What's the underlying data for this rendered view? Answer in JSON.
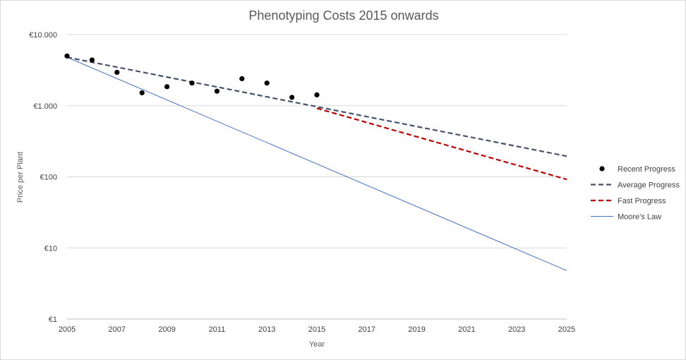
{
  "chart_data": {
    "type": "scatter",
    "title": "Phenotyping Costs 2015 onwards",
    "xlabel": "Year",
    "ylabel": "Price per Plant",
    "x_ticks": [
      "2005",
      "2007",
      "2009",
      "2011",
      "2013",
      "2015",
      "2017",
      "2019",
      "2021",
      "2023",
      "2025"
    ],
    "y_ticks": [
      {
        "value": 1,
        "label": "€1"
      },
      {
        "value": 10,
        "label": "€10"
      },
      {
        "value": 100,
        "label": "€100"
      },
      {
        "value": 1000,
        "label": "€1.000"
      },
      {
        "value": 10000,
        "label": "€10.000"
      }
    ],
    "xlim": [
      2005,
      2025
    ],
    "ylim": [
      1,
      10000
    ],
    "y_scale": "log",
    "grid": "horizontal",
    "legend_position": "right",
    "series": [
      {
        "name": "Recent Progress",
        "style": "markers",
        "color": "#000000",
        "x": [
          2005,
          2006,
          2007,
          2008,
          2009,
          2010,
          2011,
          2012,
          2013,
          2014,
          2015
        ],
        "y": [
          5000,
          4400,
          2950,
          1520,
          1850,
          2080,
          1600,
          2400,
          2080,
          1310,
          1420
        ]
      },
      {
        "name": "Average Progress",
        "style": "dashed",
        "color": "#44546a",
        "x": [
          2005,
          2025
        ],
        "y": [
          4800,
          195
        ]
      },
      {
        "name": "Fast Progress",
        "style": "dashed",
        "color": "#c00000",
        "x": [
          2015,
          2025
        ],
        "y": [
          920,
          92
        ]
      },
      {
        "name": "Moore's Law",
        "style": "solid",
        "color": "#4472c4",
        "x": [
          2005,
          2025
        ],
        "y": [
          4800,
          4.8
        ]
      }
    ]
  }
}
